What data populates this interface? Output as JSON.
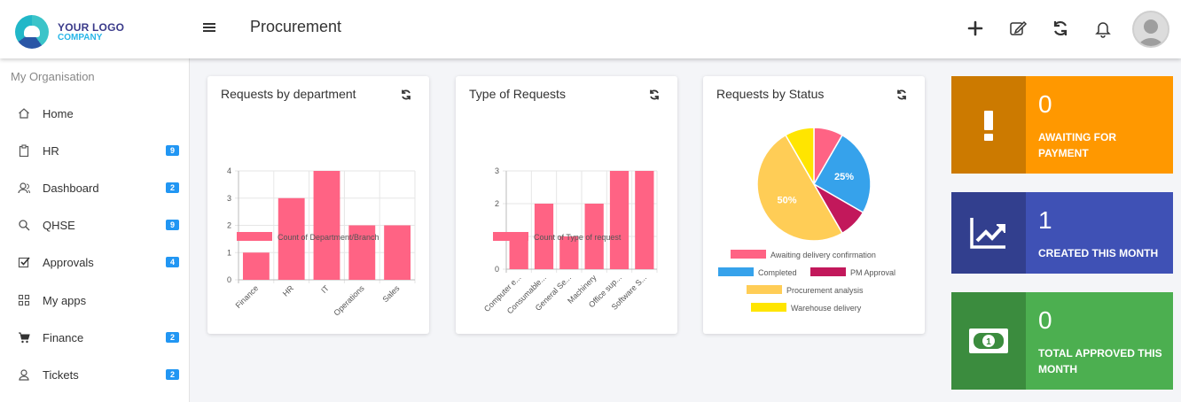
{
  "header": {
    "logo_line1": "YOUR LOGO",
    "logo_line2": "COMPANY",
    "title": "Procurement",
    "icons": [
      "plus-icon",
      "edit-icon",
      "refresh-icon",
      "bell-icon"
    ]
  },
  "sidebar": {
    "org_label": "My Organisation",
    "items": [
      {
        "label": "Home",
        "icon": "home-icon",
        "badge": ""
      },
      {
        "label": "HR",
        "icon": "clipboard-icon",
        "badge": "9"
      },
      {
        "label": "Dashboard",
        "icon": "users-icon",
        "badge": "2"
      },
      {
        "label": "QHSE",
        "icon": "search-icon",
        "badge": "9"
      },
      {
        "label": "Approvals",
        "icon": "check-square-icon",
        "badge": "4"
      },
      {
        "label": "My apps",
        "icon": "grid-icon",
        "badge": ""
      },
      {
        "label": "Finance",
        "icon": "cart-icon",
        "badge": "2"
      },
      {
        "label": "Tickets",
        "icon": "user-icon",
        "badge": "2"
      }
    ]
  },
  "cards": [
    {
      "title": "Requests by department"
    },
    {
      "title": "Type of Requests"
    },
    {
      "title": "Requests by Status"
    }
  ],
  "chart_data": [
    {
      "type": "bar",
      "categories": [
        "Finance",
        "HR",
        "IT",
        "Operations",
        "Sales"
      ],
      "series": [
        {
          "name": "Count of Department/Branch",
          "values": [
            1,
            3,
            4,
            2,
            2
          ]
        }
      ],
      "ylim": [
        0,
        4
      ],
      "yticks": [
        0,
        1,
        2,
        3,
        4
      ],
      "color": "#ff6384",
      "grid": true,
      "legend": "bottom"
    },
    {
      "type": "bar",
      "categories": [
        "Computer e...",
        "Consumable...",
        "General Se...",
        "Machinery",
        "Office sup...",
        "Software S..."
      ],
      "series": [
        {
          "name": "Count of Type of request",
          "values": [
            1,
            2,
            1,
            2,
            3,
            3
          ]
        }
      ],
      "ylim": [
        0,
        3
      ],
      "yticks": [
        0,
        1,
        2,
        3
      ],
      "color": "#ff6384",
      "grid": true,
      "legend": "bottom"
    },
    {
      "type": "pie",
      "slices": [
        {
          "label": "Awaiting delivery confirmation",
          "value": 8.33,
          "color": "#ff6384",
          "pct_label": ""
        },
        {
          "label": "Completed",
          "value": 25,
          "color": "#36a2eb",
          "pct_label": "25%"
        },
        {
          "label": "PM Approval",
          "value": 8.33,
          "color": "#c2185b",
          "pct_label": ""
        },
        {
          "label": "Procurement analysis",
          "value": 50,
          "color": "#ffcd56",
          "pct_label": "50%"
        },
        {
          "label": "Warehouse delivery",
          "value": 8.33,
          "color": "#ffe500",
          "pct_label": ""
        }
      ],
      "legend": "bottom"
    }
  ],
  "tiles": [
    {
      "value": "0",
      "caption": "AWAITING FOR PAYMENT",
      "icon": "exclamation-icon",
      "color": "#ff9800",
      "dark": "#cc7a00"
    },
    {
      "value": "1",
      "caption": "CREATED THIS MONTH",
      "icon": "trend-up-icon",
      "color": "#3f51b5",
      "dark": "#323f8e"
    },
    {
      "value": "0",
      "caption": "TOTAL APPROVED THIS MONTH",
      "icon": "money-icon",
      "color": "#4caf50",
      "dark": "#3b8c3e"
    }
  ]
}
